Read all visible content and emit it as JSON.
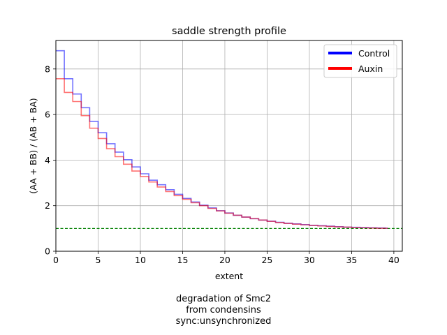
{
  "chart_data": {
    "type": "line",
    "title": "saddle strength profile",
    "xlabel": "extent",
    "ylabel": "(AA + BB) / (AB + BA)",
    "xlim": [
      0,
      41
    ],
    "ylim": [
      0,
      9.25
    ],
    "xticks": [
      0,
      5,
      10,
      15,
      20,
      25,
      30,
      35,
      40
    ],
    "yticks": [
      0,
      2,
      4,
      6,
      8
    ],
    "grid": true,
    "legend_position": "top-right",
    "step": "post",
    "x": [
      0,
      1,
      2,
      3,
      4,
      5,
      6,
      7,
      8,
      9,
      10,
      11,
      12,
      13,
      14,
      15,
      16,
      17,
      18,
      19,
      20,
      21,
      22,
      23,
      24,
      25,
      26,
      27,
      28,
      29,
      30,
      31,
      32,
      33,
      34,
      35,
      36,
      37,
      38,
      39
    ],
    "series": [
      {
        "name": "Control",
        "color": "#0000ff",
        "values": [
          8.8,
          7.57,
          6.9,
          6.3,
          5.7,
          5.2,
          4.72,
          4.35,
          4.02,
          3.7,
          3.4,
          3.12,
          2.92,
          2.7,
          2.5,
          2.32,
          2.16,
          2.02,
          1.9,
          1.78,
          1.68,
          1.58,
          1.5,
          1.43,
          1.37,
          1.32,
          1.27,
          1.23,
          1.2,
          1.17,
          1.14,
          1.12,
          1.1,
          1.08,
          1.06,
          1.05,
          1.04,
          1.03,
          1.02,
          1.01
        ]
      },
      {
        "name": "Auxin",
        "color": "#ff0000",
        "values": [
          7.57,
          6.97,
          6.57,
          5.95,
          5.4,
          4.95,
          4.5,
          4.15,
          3.82,
          3.52,
          3.28,
          3.04,
          2.82,
          2.62,
          2.44,
          2.28,
          2.13,
          2.0,
          1.88,
          1.77,
          1.67,
          1.58,
          1.5,
          1.43,
          1.37,
          1.31,
          1.26,
          1.22,
          1.19,
          1.16,
          1.13,
          1.11,
          1.09,
          1.07,
          1.06,
          1.04,
          1.03,
          1.02,
          1.01,
          1.01
        ]
      }
    ],
    "reference_line": {
      "y": 1.0,
      "color": "#008000",
      "style": "dashed"
    }
  },
  "caption": {
    "line1": "degradation of Smc2",
    "line2": "from condensins",
    "line3": "sync:unsynchronized"
  }
}
